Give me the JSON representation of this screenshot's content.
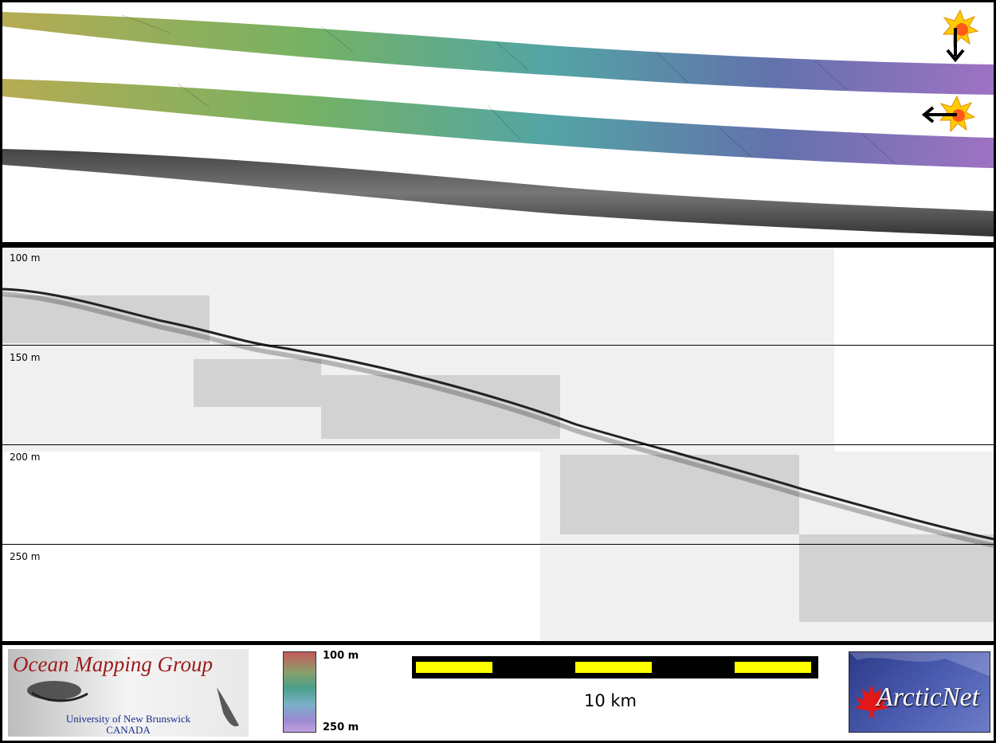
{
  "depth_axis": {
    "labels": [
      "100 m",
      "150 m",
      "200 m",
      "250 m"
    ]
  },
  "footer": {
    "logo_left": {
      "title": "Ocean Mapping Group",
      "line1": "University of New Brunswick",
      "line2": "CANADA"
    },
    "colorbar": {
      "top_label": "100 m",
      "bottom_label": "250 m"
    },
    "scalebar": {
      "label": "10 km"
    },
    "logo_right": {
      "text": "ArcticNet"
    }
  },
  "colors": {
    "scalebar_yellow": "#ffff00",
    "swath_start": "#b3a64a",
    "swath_mid": "#4aa0a0",
    "swath_end": "#8a6aba",
    "seafloor_line": "#222222",
    "profile_background": "#f0f0f0"
  },
  "icons": [
    "sun-icon",
    "arrow-down-icon",
    "arrow-left-icon",
    "maple-leaf-icon"
  ]
}
